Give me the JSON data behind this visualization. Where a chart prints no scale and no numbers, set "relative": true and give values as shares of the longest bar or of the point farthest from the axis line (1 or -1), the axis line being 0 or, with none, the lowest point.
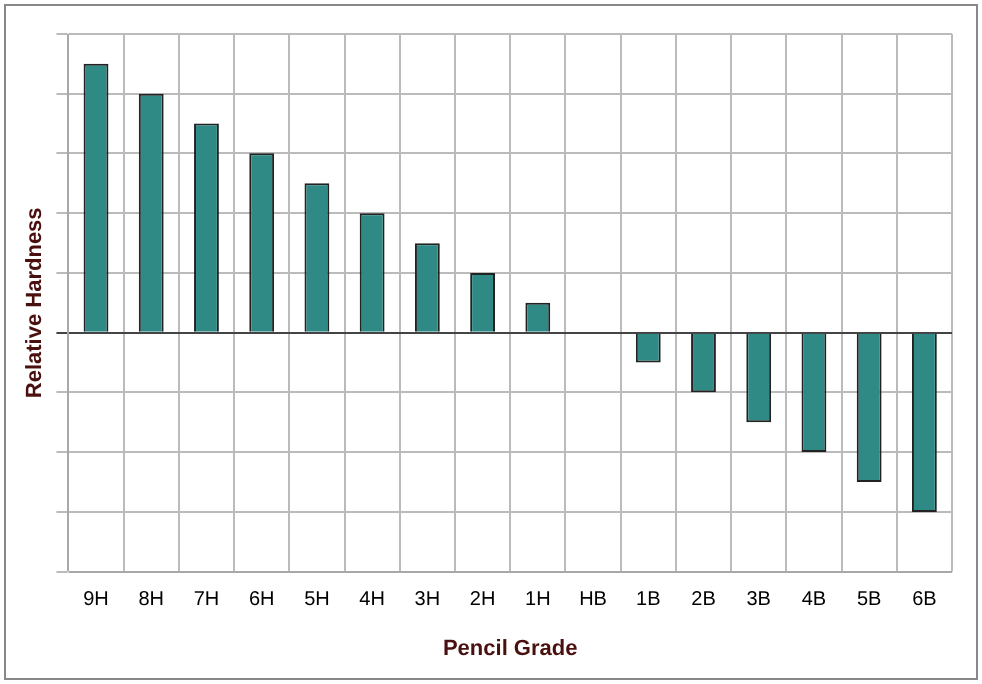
{
  "chart_data": {
    "type": "bar",
    "xlabel": "Pencil Grade",
    "ylabel": "Relative Hardness",
    "categories": [
      "9H",
      "8H",
      "7H",
      "6H",
      "5H",
      "4H",
      "3H",
      "2H",
      "1H",
      "HB",
      "1B",
      "2B",
      "3B",
      "4B",
      "5B",
      "6B"
    ],
    "values": [
      1,
      0.889,
      0.778,
      0.667,
      0.556,
      0.444,
      0.333,
      0.222,
      0.111,
      0,
      -0.111,
      -0.222,
      -0.333,
      -0.444,
      -0.556,
      -0.667
    ],
    "color": "#2f8a86",
    "relative": true,
    "grid": true,
    "legend": false
  }
}
